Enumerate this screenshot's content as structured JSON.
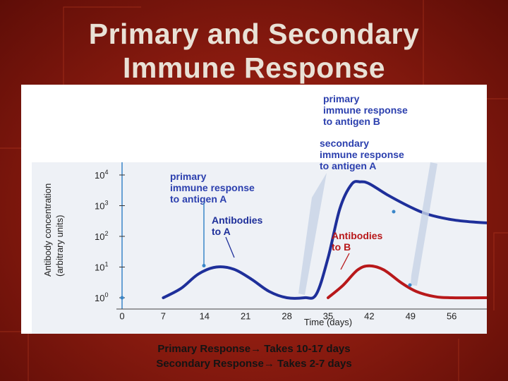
{
  "slide": {
    "title_line1": "Primary and Secondary",
    "title_line2": "Immune Response"
  },
  "caption": {
    "line1_label": "Primary Response",
    "line1_text": "Takes 10-17 days",
    "line2_label": "Secondary Response",
    "line2_text": "Takes 2-7 days",
    "arrow": "→"
  },
  "colors": {
    "background": "#8a1a10",
    "title_text": "#e9e1d6",
    "antibodies_a": "#1e2f9a",
    "antibodies_b": "#b8181a",
    "annotation_a": "#2b3fae",
    "annotation_b": "#b8181a",
    "plot_bg": "#eef1f6"
  },
  "chart_data": {
    "type": "line",
    "title": "",
    "xlabel": "Time (days)",
    "ylabel": "Antibody concentration (arbitrary units)",
    "y_scale": "log",
    "xlim": [
      0,
      63
    ],
    "ylim": [
      1,
      20000
    ],
    "x_ticks": [
      0,
      7,
      14,
      21,
      28,
      35,
      42,
      49,
      56
    ],
    "y_ticks": [
      {
        "label": "10",
        "exp": "0",
        "value": 1
      },
      {
        "label": "10",
        "exp": "1",
        "value": 10
      },
      {
        "label": "10",
        "exp": "2",
        "value": 100
      },
      {
        "label": "10",
        "exp": "3",
        "value": 1000
      },
      {
        "label": "10",
        "exp": "4",
        "value": 10000
      }
    ],
    "series": [
      {
        "name": "Antibodies to A",
        "color": "#1e2f9a",
        "points": [
          [
            7,
            1
          ],
          [
            10,
            2
          ],
          [
            13,
            6
          ],
          [
            16,
            10
          ],
          [
            19,
            8.5
          ],
          [
            22,
            4
          ],
          [
            25,
            1.6
          ],
          [
            28,
            1
          ],
          [
            31,
            1
          ],
          [
            33,
            1.3
          ],
          [
            35,
            20
          ],
          [
            37,
            800
          ],
          [
            39,
            5000
          ],
          [
            40.5,
            6000
          ],
          [
            42,
            5200
          ],
          [
            45,
            2300
          ],
          [
            49,
            900
          ],
          [
            52,
            520
          ],
          [
            56,
            350
          ],
          [
            60,
            290
          ],
          [
            63,
            270
          ]
        ]
      },
      {
        "name": "Antibodies to B",
        "color": "#b8181a",
        "points": [
          [
            35,
            1
          ],
          [
            37.5,
            2.5
          ],
          [
            40,
            8
          ],
          [
            42,
            11
          ],
          [
            44.5,
            8
          ],
          [
            47.5,
            3
          ],
          [
            50,
            1.6
          ],
          [
            53,
            1.1
          ],
          [
            56,
            1
          ],
          [
            63,
            1
          ]
        ]
      }
    ],
    "annotations": [
      {
        "text_lines": [
          "primary",
          "immune response",
          "to antigen A"
        ],
        "color": "#2b3fae",
        "series": "Antibodies to A",
        "x": 16
      },
      {
        "text_lines": [
          "Antibodies",
          "to A"
        ],
        "color": "#1e2f9a"
      },
      {
        "text_lines": [
          "Antibodies",
          "to B"
        ],
        "color": "#b8181a"
      },
      {
        "text_lines": [
          "primary",
          "immune response",
          "to antigen B"
        ],
        "color": "#2b3fae"
      },
      {
        "text_lines": [
          "secondary",
          "immune response",
          "to antigen A"
        ],
        "color": "#2b3fae"
      }
    ],
    "legend": "none",
    "grid": false
  }
}
